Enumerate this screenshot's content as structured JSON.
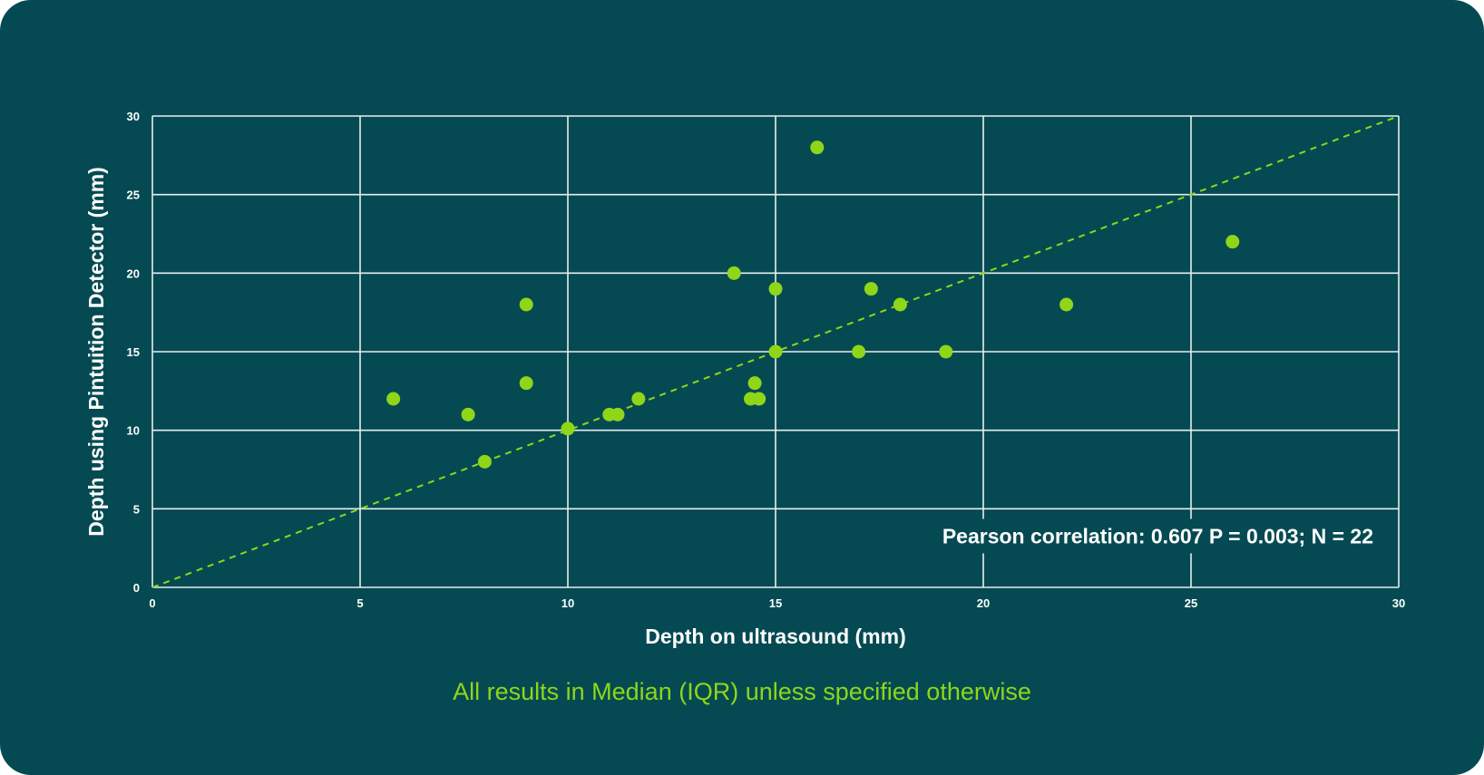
{
  "footnote": "All results in Median (IQR) unless specified otherwise",
  "colors": {
    "background": "#054a52",
    "accent": "#8fd619",
    "text": "#ffffff",
    "grid": "#e6eef0"
  },
  "chart_data": {
    "type": "scatter",
    "title": "",
    "xlabel": "Depth on ultrasound (mm)",
    "ylabel": "Depth using Pintuition Detector (mm)",
    "xlim": [
      0,
      30
    ],
    "ylim": [
      0,
      30
    ],
    "xticks": [
      0,
      5,
      10,
      15,
      20,
      25,
      30
    ],
    "yticks": [
      0,
      5,
      10,
      15,
      20,
      25,
      30
    ],
    "grid": true,
    "reference_line": {
      "style": "dashed",
      "from": [
        0,
        0
      ],
      "to": [
        30,
        30
      ]
    },
    "annotation": "Pearson correlation: 0.607 P = 0.003; N = 22",
    "points": [
      {
        "x": 5.8,
        "y": 12
      },
      {
        "x": 7.6,
        "y": 11
      },
      {
        "x": 8.0,
        "y": 8
      },
      {
        "x": 9.0,
        "y": 18
      },
      {
        "x": 9.0,
        "y": 13
      },
      {
        "x": 10.0,
        "y": 10.1
      },
      {
        "x": 11.0,
        "y": 11
      },
      {
        "x": 11.2,
        "y": 11
      },
      {
        "x": 11.7,
        "y": 12
      },
      {
        "x": 14.0,
        "y": 20
      },
      {
        "x": 14.4,
        "y": 12
      },
      {
        "x": 14.5,
        "y": 13
      },
      {
        "x": 14.6,
        "y": 12
      },
      {
        "x": 15.0,
        "y": 19
      },
      {
        "x": 15.0,
        "y": 15
      },
      {
        "x": 16.0,
        "y": 28
      },
      {
        "x": 17.0,
        "y": 15
      },
      {
        "x": 17.3,
        "y": 19
      },
      {
        "x": 18.0,
        "y": 18
      },
      {
        "x": 19.1,
        "y": 15
      },
      {
        "x": 22.0,
        "y": 18
      },
      {
        "x": 26.0,
        "y": 22
      }
    ]
  }
}
